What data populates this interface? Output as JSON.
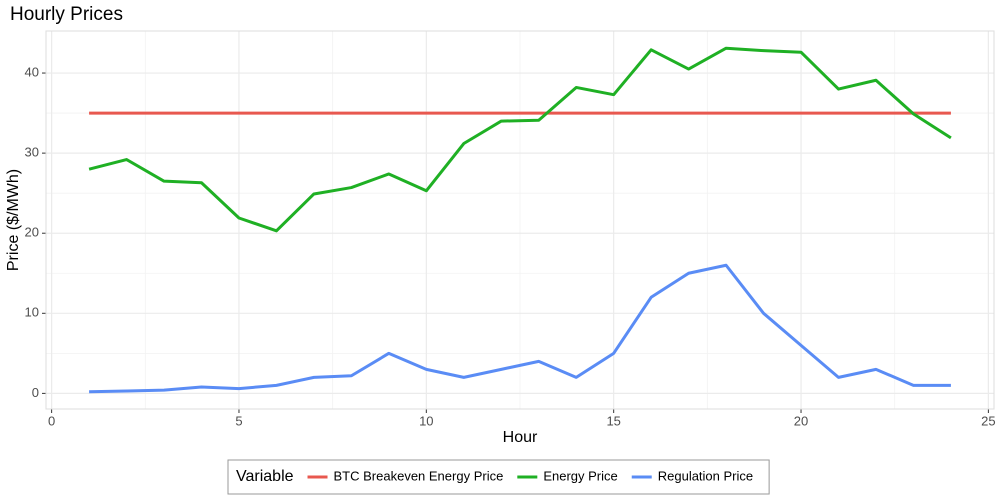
{
  "chart_data": {
    "type": "line",
    "title": "Hourly Prices",
    "x_label": "Hour",
    "y_label": "Price ($/MWh)",
    "x": [
      1,
      2,
      3,
      4,
      5,
      6,
      7,
      8,
      9,
      10,
      11,
      12,
      13,
      14,
      15,
      16,
      17,
      18,
      19,
      20,
      21,
      22,
      23,
      24
    ],
    "series": [
      {
        "name": "BTC Breakeven Energy Price",
        "color": "#e8584f",
        "values": [
          35,
          35,
          35,
          35,
          35,
          35,
          35,
          35,
          35,
          35,
          35,
          35,
          35,
          35,
          35,
          35,
          35,
          35,
          35,
          35,
          35,
          35,
          35,
          35
        ]
      },
      {
        "name": "Energy Price",
        "color": "#1fb024",
        "values": [
          28.0,
          29.2,
          26.5,
          26.3,
          21.9,
          20.3,
          24.9,
          25.7,
          27.4,
          25.3,
          31.2,
          34.0,
          34.1,
          38.2,
          37.3,
          42.9,
          40.5,
          43.1,
          42.8,
          42.6,
          38.0,
          39.1,
          34.9,
          31.9
        ]
      },
      {
        "name": "Regulation Price",
        "color": "#5a8cf5",
        "values": [
          0.2,
          0.3,
          0.4,
          0.8,
          0.6,
          1.0,
          2.0,
          2.2,
          5.0,
          3.0,
          2.0,
          3.0,
          4.0,
          2.0,
          5.0,
          12.0,
          15.0,
          16.0,
          10.0,
          6.0,
          2.0,
          3.0,
          1.0,
          1.0
        ]
      }
    ],
    "legend_title": "Variable",
    "legend_position": "bottom",
    "xlim": [
      -0.15,
      25.15
    ],
    "xticks": [
      0,
      5,
      10,
      15,
      20,
      25
    ],
    "ylim": [
      -1.95,
      45.25
    ],
    "yticks": [
      0,
      10,
      20,
      30,
      40
    ],
    "grid": true
  }
}
